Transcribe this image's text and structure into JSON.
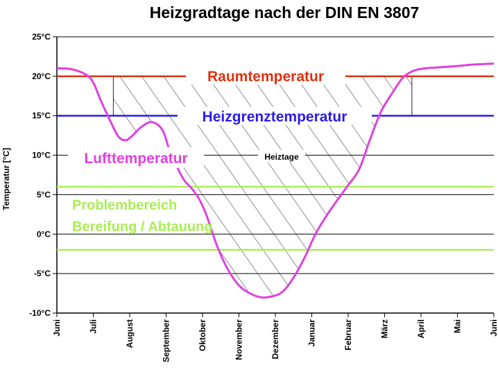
{
  "chart_data": {
    "type": "line",
    "title": "Heizgradtage nach der DIN EN 3807",
    "ylabel": "Temperatur [°C]",
    "xlabel": "",
    "ylim": [
      -10,
      25
    ],
    "y_ticks": [
      "25°C",
      "20°C",
      "15°C",
      "10°C",
      "5°C",
      "0°C",
      "-5°C",
      "-10°C"
    ],
    "y_tick_values": [
      25,
      20,
      15,
      10,
      5,
      0,
      -5,
      -10
    ],
    "x_ticks": [
      "Juni",
      "Juli",
      "August",
      "September",
      "Oktober",
      "November",
      "Dezember",
      "Januar",
      "Februar",
      "März",
      "April",
      "Mai",
      "Juni"
    ],
    "grid": true,
    "series": [
      {
        "name": "Lufttemperatur",
        "color": "#e040e0",
        "x": [
          0,
          0.4,
          0.8,
          1.0,
          1.2,
          1.5,
          1.7,
          1.9,
          2.1,
          2.3,
          2.6,
          2.9,
          3.1,
          3.3,
          3.5,
          3.7,
          3.9,
          4.1,
          4.4,
          4.7,
          5.0,
          5.3,
          5.6,
          5.9,
          6.2,
          6.5,
          6.8,
          7.1,
          7.4,
          7.7,
          8.0,
          8.3,
          8.6,
          8.9,
          9.2,
          9.5,
          9.8,
          10.1,
          10.4,
          10.7,
          11.0,
          11.5,
          12.0
        ],
        "y": [
          21.0,
          20.9,
          20.2,
          19.2,
          17.0,
          14.0,
          12.3,
          11.9,
          12.6,
          13.5,
          14.2,
          13.2,
          10.5,
          8.5,
          6.8,
          5.8,
          4.5,
          2.5,
          -1.5,
          -4.5,
          -6.5,
          -7.5,
          -8.0,
          -7.9,
          -7.3,
          -5.5,
          -3.0,
          0.0,
          2.3,
          4.3,
          6.2,
          8.2,
          12.0,
          15.5,
          17.8,
          19.8,
          20.7,
          21.0,
          21.1,
          21.2,
          21.3,
          21.5,
          21.6
        ]
      },
      {
        "name": "Raumtemperatur",
        "color": "#e03010",
        "y_const": 20
      },
      {
        "name": "Heizgrenztemperatur",
        "color": "#2a1aee",
        "y_const": 15
      },
      {
        "name": "",
        "color": "#aaee55",
        "y_const": 6
      },
      {
        "name": "",
        "color": "#aaee55",
        "y_const": -2
      }
    ],
    "hatched_region": {
      "label": "Heiztage",
      "x_start": 1.55,
      "x_end": 9.75,
      "upper_y": 20,
      "lower_series": "Lufttemperatur"
    },
    "annotations": {
      "raum": {
        "text": "Raumtemperatur",
        "color": "#e03010"
      },
      "heizgrenz": {
        "text": "Heizgrenztemperatur",
        "color": "#2a1aee"
      },
      "luft": {
        "text": "Lufttemperatur",
        "color": "#e040e0"
      },
      "heiztage": {
        "text": "Heiztage",
        "color": "#000000"
      },
      "problem1": {
        "text": "Problembereich",
        "color": "#aaee55"
      },
      "problem2": {
        "text": "Bereifung / Abtauung",
        "color": "#aaee55"
      }
    }
  }
}
